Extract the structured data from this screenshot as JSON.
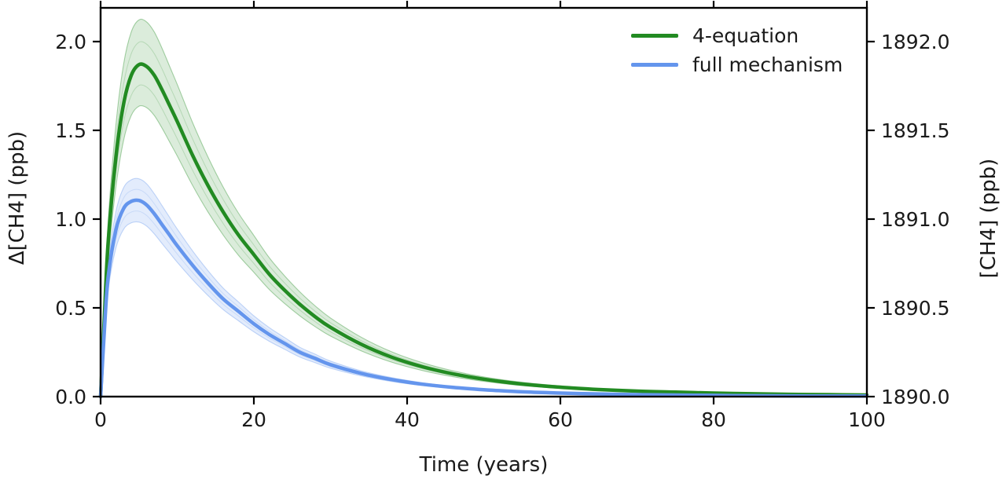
{
  "figure": {
    "background": "#ffffff",
    "text_color": "#1a1a1a",
    "spine_color": "#000000"
  },
  "legend": {
    "position": "upper right",
    "items": [
      {
        "label": "4-equation",
        "color": "#228B22"
      },
      {
        "label": "full mechanism",
        "color": "#6495ED"
      }
    ]
  },
  "chart_data": {
    "type": "line",
    "title": "",
    "xlabel": "Time (years)",
    "ylabel_left": "Δ[CH4] (ppb)",
    "ylabel_right": "[CH4] (ppb)",
    "xlim": [
      0,
      100
    ],
    "ylim_left": [
      0,
      2.19
    ],
    "ylim_right": [
      1890.0,
      1892.19
    ],
    "grid": false,
    "x_tick_values": [
      0,
      20,
      40,
      60,
      80,
      100
    ],
    "x_tick_labels": [
      "0",
      "20",
      "40",
      "60",
      "80",
      "100"
    ],
    "y_tick_values_left": [
      0.0,
      0.5,
      1.0,
      1.5,
      2.0
    ],
    "y_tick_labels_left": [
      "0.0",
      "0.5",
      "1.0",
      "1.5",
      "2.0"
    ],
    "y_tick_values_right": [
      1890.0,
      1890.5,
      1891.0,
      1891.5,
      1892.0
    ],
    "y_tick_labels_right": [
      "1890.0",
      "1890.5",
      "1891.0",
      "1891.5",
      "1892.0"
    ],
    "x": [
      0,
      0.5,
      1,
      2,
      3,
      4,
      5,
      6,
      7,
      8,
      9,
      10,
      12,
      14,
      16,
      18,
      20,
      22,
      24,
      26,
      28,
      30,
      34,
      38,
      42,
      46,
      50,
      55,
      60,
      65,
      70,
      75,
      80,
      85,
      90,
      95,
      100
    ],
    "series": [
      {
        "name": "4-equation",
        "color": "#228B22",
        "band_fill": "rgba(34,139,34,0.16)",
        "peak": {
          "t": 5,
          "value": 1.87
        },
        "y": [
          0,
          0.46,
          0.88,
          1.35,
          1.65,
          1.81,
          1.87,
          1.86,
          1.81,
          1.73,
          1.64,
          1.55,
          1.36,
          1.19,
          1.04,
          0.91,
          0.8,
          0.69,
          0.6,
          0.52,
          0.45,
          0.39,
          0.295,
          0.222,
          0.168,
          0.128,
          0.098,
          0.071,
          0.053,
          0.04,
          0.031,
          0.025,
          0.02,
          0.016,
          0.013,
          0.011,
          0.009
        ],
        "upper": [
          0,
          0.522,
          0.999,
          1.532,
          1.873,
          2.054,
          2.122,
          2.111,
          2.054,
          1.964,
          1.861,
          1.759,
          1.544,
          1.351,
          1.18,
          1.033,
          0.908,
          0.783,
          0.681,
          0.59,
          0.511,
          0.443,
          0.335,
          0.252,
          0.191,
          0.145,
          0.111,
          0.081,
          0.06,
          0.045,
          0.035,
          0.028,
          0.023,
          0.018,
          0.015,
          0.012,
          0.01
        ],
        "lower": [
          0,
          0.403,
          0.77,
          1.181,
          1.444,
          1.584,
          1.636,
          1.628,
          1.584,
          1.514,
          1.435,
          1.356,
          1.19,
          1.041,
          0.91,
          0.796,
          0.7,
          0.604,
          0.525,
          0.455,
          0.394,
          0.341,
          0.258,
          0.194,
          0.147,
          0.112,
          0.086,
          0.062,
          0.046,
          0.035,
          0.027,
          0.022,
          0.018,
          0.014,
          0.011,
          0.01,
          0.008
        ]
      },
      {
        "name": "full mechanism",
        "color": "#6495ED",
        "band_fill": "rgba(100,149,237,0.18)",
        "peak": {
          "t": 5,
          "value": 1.105
        },
        "y": [
          0,
          0.38,
          0.68,
          0.94,
          1.06,
          1.1,
          1.105,
          1.08,
          1.03,
          0.97,
          0.91,
          0.85,
          0.74,
          0.64,
          0.55,
          0.48,
          0.41,
          0.35,
          0.3,
          0.25,
          0.215,
          0.18,
          0.131,
          0.096,
          0.07,
          0.052,
          0.039,
          0.027,
          0.02,
          0.015,
          0.011,
          0.009,
          0.007,
          0.005,
          0.004,
          0.0035,
          0.003
        ],
        "upper": [
          0,
          0.422,
          0.755,
          1.043,
          1.177,
          1.221,
          1.227,
          1.199,
          1.143,
          1.077,
          1.01,
          0.944,
          0.821,
          0.71,
          0.611,
          0.533,
          0.455,
          0.389,
          0.333,
          0.278,
          0.239,
          0.2,
          0.145,
          0.107,
          0.078,
          0.058,
          0.043,
          0.03,
          0.022,
          0.017,
          0.012,
          0.01,
          0.008,
          0.006,
          0.004,
          0.004,
          0.003
        ],
        "lower": [
          0,
          0.338,
          0.605,
          0.837,
          0.943,
          0.979,
          0.983,
          0.961,
          0.917,
          0.863,
          0.81,
          0.757,
          0.659,
          0.57,
          0.49,
          0.427,
          0.365,
          0.312,
          0.267,
          0.223,
          0.191,
          0.16,
          0.117,
          0.085,
          0.062,
          0.046,
          0.035,
          0.024,
          0.018,
          0.013,
          0.01,
          0.008,
          0.006,
          0.004,
          0.004,
          0.003,
          0.003
        ]
      }
    ]
  }
}
